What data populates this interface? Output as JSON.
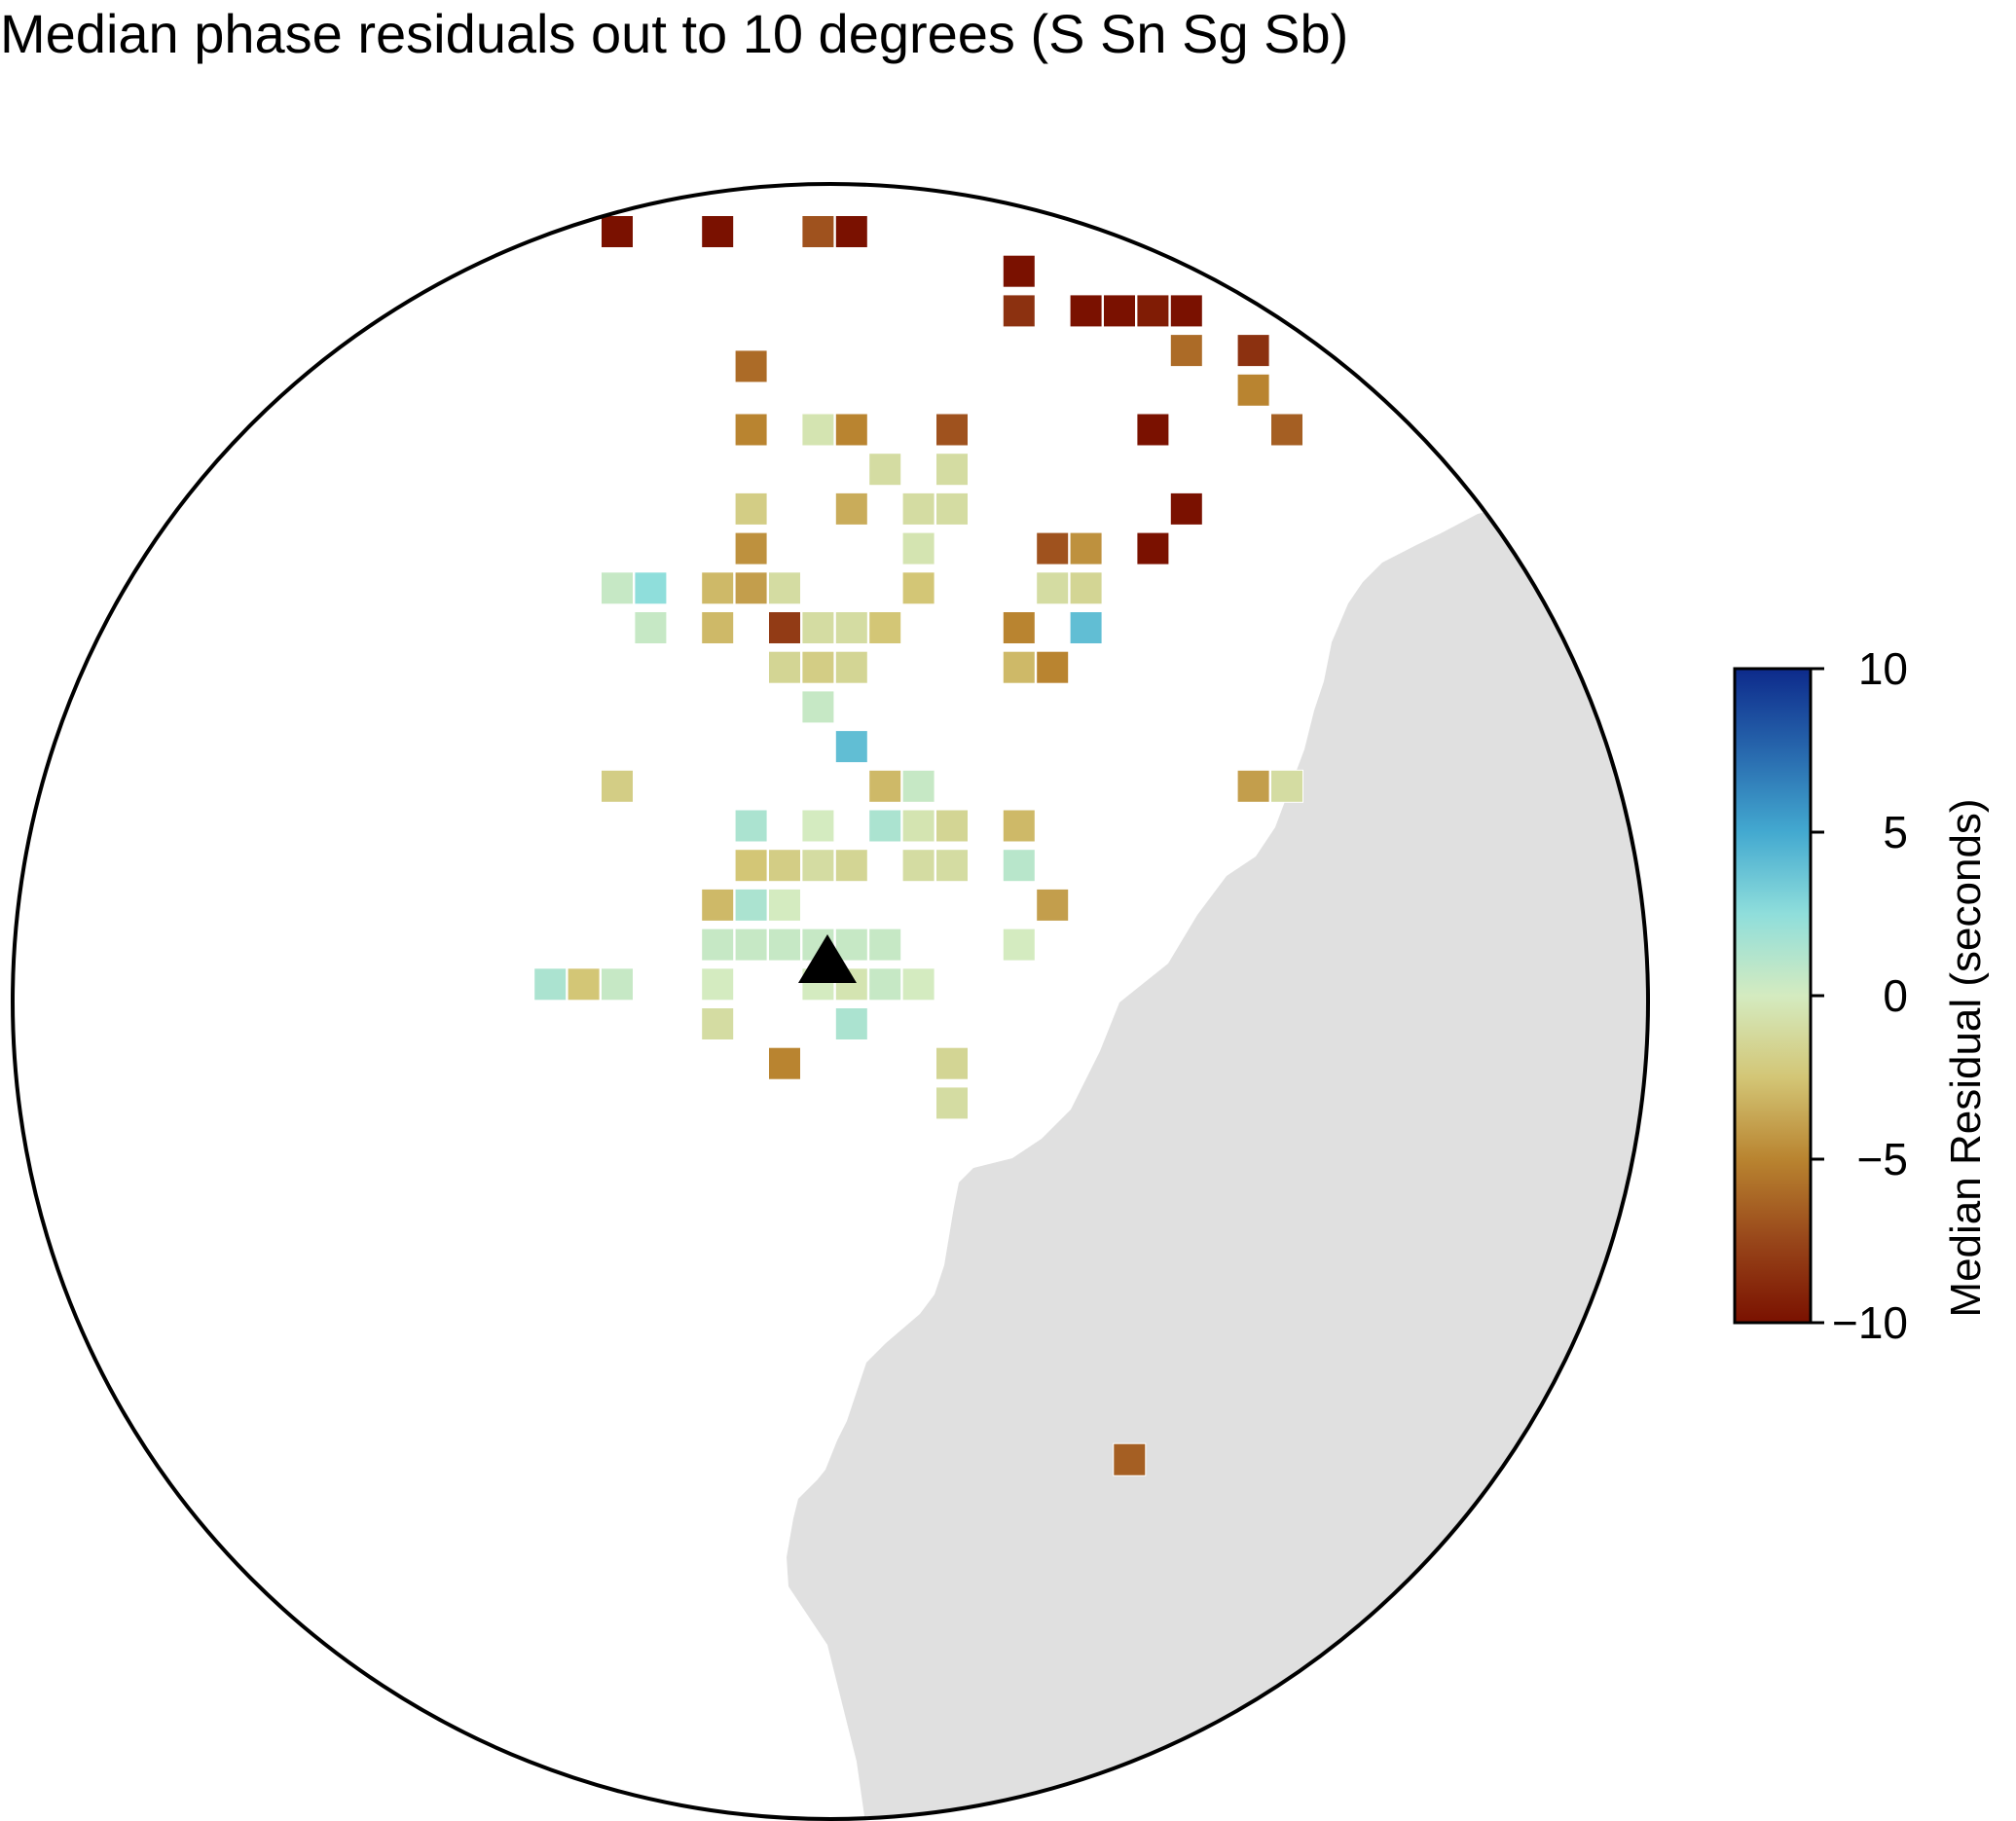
{
  "title": "Median phase residuals out to 10 degrees (S Sn Sg Sb)",
  "colorbar": {
    "label": "Median Residual (seconds)",
    "min": -10,
    "max": 10,
    "ticks": [
      {
        "value": 10,
        "label": "10"
      },
      {
        "value": 5,
        "label": "5"
      },
      {
        "value": 0,
        "label": "0"
      },
      {
        "value": -5,
        "label": "−5"
      },
      {
        "value": -10,
        "label": "−10"
      }
    ],
    "colormap": [
      {
        "value": -10,
        "color": "#7a1100"
      },
      {
        "value": -7.5,
        "color": "#98461a"
      },
      {
        "value": -5,
        "color": "#b98430"
      },
      {
        "value": -2.5,
        "color": "#d3c676"
      },
      {
        "value": 0,
        "color": "#d4ebc0"
      },
      {
        "value": 2.5,
        "color": "#8fdedb"
      },
      {
        "value": 5,
        "color": "#43a9d0"
      },
      {
        "value": 7.5,
        "color": "#2767ad"
      },
      {
        "value": 10,
        "color": "#0d2a8b"
      }
    ]
  },
  "map": {
    "projection": "azimuthal, 10 degree radius around station",
    "land_color": "#e0e0e0",
    "ocean_color": "#ffffff",
    "station_marker": "triangle"
  },
  "cells": [
    {
      "col": 0,
      "row": 0,
      "value": -10
    },
    {
      "col": 3,
      "row": 0,
      "value": -10
    },
    {
      "col": 6,
      "row": 0,
      "value": -7
    },
    {
      "col": 7,
      "row": 0,
      "value": -10
    },
    {
      "col": 12,
      "row": 1,
      "value": -10
    },
    {
      "col": 12,
      "row": 2,
      "value": -8.5
    },
    {
      "col": 14,
      "row": 2,
      "value": -10
    },
    {
      "col": 15,
      "row": 2,
      "value": -10
    },
    {
      "col": 16,
      "row": 2,
      "value": -9.5
    },
    {
      "col": 17,
      "row": 2,
      "value": -10
    },
    {
      "col": 17,
      "row": 3,
      "value": -6
    },
    {
      "col": 19,
      "row": 3,
      "value": -8.5
    },
    {
      "col": 4,
      "row": 3.4,
      "value": -6
    },
    {
      "col": 19,
      "row": 4,
      "value": -5
    },
    {
      "col": 20,
      "row": 5,
      "value": -6.5
    },
    {
      "col": 16,
      "row": 5,
      "value": -10
    },
    {
      "col": 4,
      "row": 5,
      "value": -5
    },
    {
      "col": 6,
      "row": 5,
      "value": -0.5
    },
    {
      "col": 7,
      "row": 5,
      "value": -5
    },
    {
      "col": 10,
      "row": 5,
      "value": -7
    },
    {
      "col": 8,
      "row": 6,
      "value": -1
    },
    {
      "col": 10,
      "row": 6,
      "value": -1
    },
    {
      "col": 4,
      "row": 7,
      "value": -2
    },
    {
      "col": 7,
      "row": 7,
      "value": -3.5
    },
    {
      "col": 9,
      "row": 7,
      "value": -1
    },
    {
      "col": 10,
      "row": 7,
      "value": -1
    },
    {
      "col": 17,
      "row": 7,
      "value": -10
    },
    {
      "col": 4,
      "row": 8,
      "value": -4.5
    },
    {
      "col": 9,
      "row": 8,
      "value": -0.5
    },
    {
      "col": 13,
      "row": 8,
      "value": -7
    },
    {
      "col": 14,
      "row": 8,
      "value": -4.5
    },
    {
      "col": 16,
      "row": 8,
      "value": -10
    },
    {
      "col": 0,
      "row": 9,
      "value": 0.5
    },
    {
      "col": 1,
      "row": 9,
      "value": 2.5
    },
    {
      "col": 3,
      "row": 9,
      "value": -3
    },
    {
      "col": 4,
      "row": 9,
      "value": -4
    },
    {
      "col": 5,
      "row": 9,
      "value": -1
    },
    {
      "col": 9,
      "row": 9,
      "value": -2.5
    },
    {
      "col": 13,
      "row": 9,
      "value": -1
    },
    {
      "col": 14,
      "row": 9,
      "value": -1.5
    },
    {
      "col": 1,
      "row": 10,
      "value": 0.5
    },
    {
      "col": 3,
      "row": 10,
      "value": -3
    },
    {
      "col": 5,
      "row": 10,
      "value": -8
    },
    {
      "col": 6,
      "row": 10,
      "value": -1
    },
    {
      "col": 7,
      "row": 10,
      "value": -1
    },
    {
      "col": 8,
      "row": 10,
      "value": -2.5
    },
    {
      "col": 12,
      "row": 10,
      "value": -5
    },
    {
      "col": 14,
      "row": 10,
      "value": 4
    },
    {
      "col": 5,
      "row": 11,
      "value": -1.5
    },
    {
      "col": 6,
      "row": 11,
      "value": -2
    },
    {
      "col": 7,
      "row": 11,
      "value": -1.5
    },
    {
      "col": 12,
      "row": 11,
      "value": -3
    },
    {
      "col": 13,
      "row": 11,
      "value": -5
    },
    {
      "col": 6,
      "row": 12,
      "value": 0.5
    },
    {
      "col": 7,
      "row": 13,
      "value": 4
    },
    {
      "col": 0,
      "row": 14,
      "value": -2
    },
    {
      "col": 8,
      "row": 14,
      "value": -3
    },
    {
      "col": 9,
      "row": 14,
      "value": 0.5
    },
    {
      "col": 19,
      "row": 14,
      "value": -4
    },
    {
      "col": 20,
      "row": 14,
      "value": -1
    },
    {
      "col": 4,
      "row": 15,
      "value": 1.5
    },
    {
      "col": 6,
      "row": 15,
      "value": 0
    },
    {
      "col": 8,
      "row": 15,
      "value": 1.5
    },
    {
      "col": 9,
      "row": 15,
      "value": -0.5
    },
    {
      "col": 10,
      "row": 15,
      "value": -1.5
    },
    {
      "col": 12,
      "row": 15,
      "value": -3
    },
    {
      "col": 4,
      "row": 16,
      "value": -2.5
    },
    {
      "col": 5,
      "row": 16,
      "value": -2
    },
    {
      "col": 6,
      "row": 16,
      "value": -1
    },
    {
      "col": 7,
      "row": 16,
      "value": -1.5
    },
    {
      "col": 9,
      "row": 16,
      "value": -1
    },
    {
      "col": 10,
      "row": 16,
      "value": -1
    },
    {
      "col": 12,
      "row": 16,
      "value": 1
    },
    {
      "col": 3,
      "row": 17,
      "value": -3
    },
    {
      "col": 4,
      "row": 17,
      "value": 1.5
    },
    {
      "col": 5,
      "row": 17,
      "value": 0
    },
    {
      "col": 13,
      "row": 17,
      "value": -4
    },
    {
      "col": 3,
      "row": 18,
      "value": 0.5
    },
    {
      "col": 4,
      "row": 18,
      "value": 0.5
    },
    {
      "col": 5,
      "row": 18,
      "value": 0.5
    },
    {
      "col": 6,
      "row": 18,
      "value": 0.5
    },
    {
      "col": 7,
      "row": 18,
      "value": 0.5
    },
    {
      "col": 8,
      "row": 18,
      "value": 0.5
    },
    {
      "col": 12,
      "row": 18,
      "value": 0
    },
    {
      "col": -2,
      "row": 19,
      "value": 1.5
    },
    {
      "col": -1,
      "row": 19,
      "value": -2.5
    },
    {
      "col": 0,
      "row": 19,
      "value": 0.5
    },
    {
      "col": 3,
      "row": 19,
      "value": 0
    },
    {
      "col": 6,
      "row": 19,
      "value": 0
    },
    {
      "col": 7,
      "row": 19,
      "value": -0.5
    },
    {
      "col": 8,
      "row": 19,
      "value": 0.5
    },
    {
      "col": 9,
      "row": 19,
      "value": 0
    },
    {
      "col": 3,
      "row": 20,
      "value": -1
    },
    {
      "col": 7,
      "row": 20,
      "value": 1.5
    },
    {
      "col": 5,
      "row": 21,
      "value": -5
    },
    {
      "col": 10,
      "row": 21,
      "value": -1.5
    },
    {
      "col": 10,
      "row": 22,
      "value": -1
    },
    {
      "col": 15.3,
      "row": 31,
      "value": -6.5
    }
  ]
}
